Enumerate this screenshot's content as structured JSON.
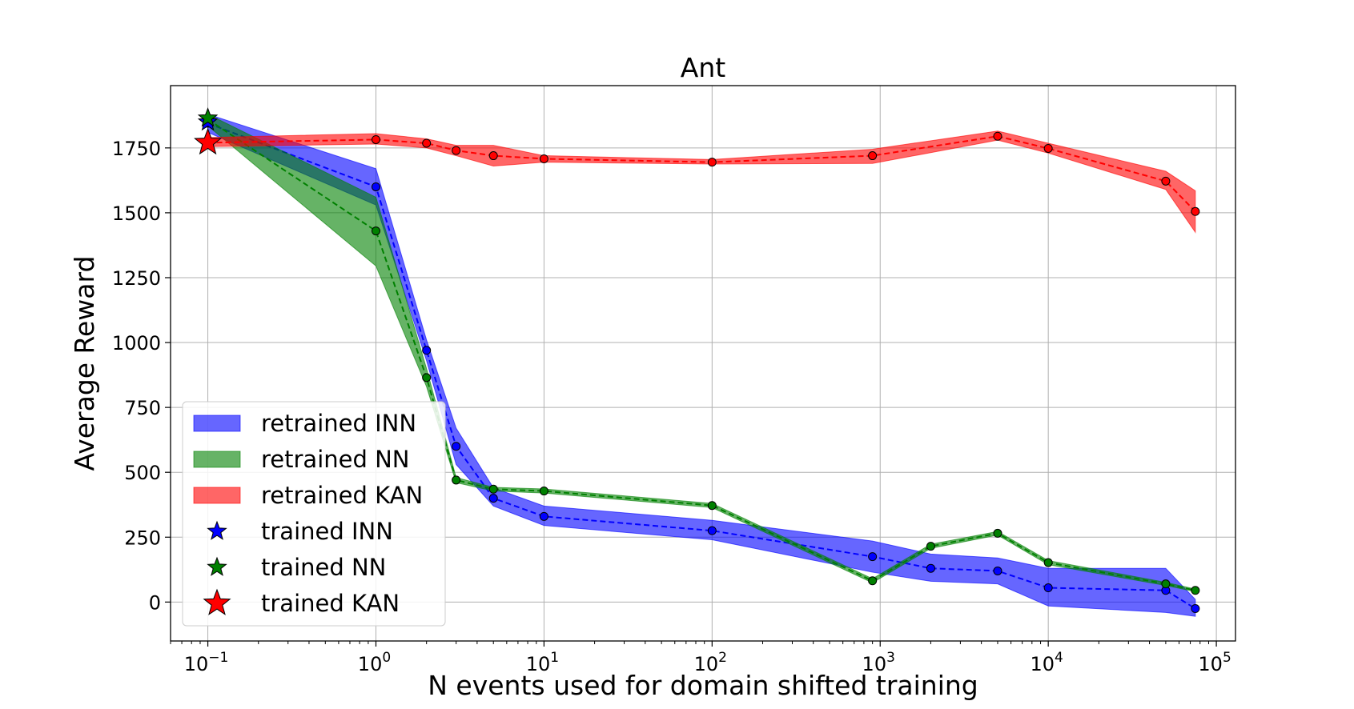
{
  "chart_data": {
    "type": "line",
    "title": "Ant",
    "xlabel": "N events used for domain shifted training",
    "ylabel": "Average Reward",
    "xscale": "log",
    "xlim": [
      0.06,
      130000
    ],
    "ylim": [
      -150,
      1990
    ],
    "x_ticks": [
      {
        "value": 0.1,
        "base": "10",
        "exp": "−1"
      },
      {
        "value": 1,
        "base": "10",
        "exp": "0"
      },
      {
        "value": 10,
        "base": "10",
        "exp": "1"
      },
      {
        "value": 100,
        "base": "10",
        "exp": "2"
      },
      {
        "value": 1000,
        "base": "10",
        "exp": "3"
      },
      {
        "value": 10000,
        "base": "10",
        "exp": "4"
      },
      {
        "value": 100000,
        "base": "10",
        "exp": "5"
      }
    ],
    "y_ticks": [
      0,
      250,
      500,
      750,
      1000,
      1250,
      1500,
      1750
    ],
    "grid": true,
    "legend_position": "lower-left",
    "series": [
      {
        "name": "retrained INN",
        "color": "#0000ff",
        "x": [
          0.1,
          1,
          2,
          3,
          5,
          10,
          100,
          900,
          2000,
          5000,
          10000,
          50000,
          75000
        ],
        "y": [
          1845,
          1600,
          970,
          600,
          400,
          330,
          275,
          175,
          130,
          120,
          55,
          45,
          -25
        ],
        "upper": [
          1880,
          1670,
          1010,
          670,
          440,
          370,
          315,
          235,
          185,
          170,
          130,
          130,
          10
        ],
        "lower": [
          1810,
          1530,
          930,
          530,
          370,
          295,
          240,
          115,
          80,
          70,
          -15,
          -40,
          -55
        ]
      },
      {
        "name": "retrained NN",
        "color": "#008000",
        "x": [
          0.1,
          1,
          2,
          3,
          5,
          10,
          100,
          900,
          2000,
          5000,
          10000,
          50000,
          75000
        ],
        "y": [
          1860,
          1430,
          865,
          470,
          435,
          428,
          372,
          82,
          215,
          265,
          152,
          70,
          45
        ],
        "upper": [
          1880,
          1560,
          900,
          480,
          442,
          436,
          380,
          90,
          223,
          272,
          160,
          76,
          50
        ],
        "lower": [
          1835,
          1295,
          830,
          460,
          428,
          420,
          364,
          74,
          207,
          258,
          144,
          64,
          40
        ]
      },
      {
        "name": "retrained KAN",
        "color": "#ff0000",
        "x": [
          0.1,
          1,
          2,
          3,
          5,
          10,
          100,
          900,
          5000,
          10000,
          50000,
          75000
        ],
        "y": [
          1770,
          1782,
          1768,
          1740,
          1720,
          1708,
          1695,
          1720,
          1795,
          1748,
          1622,
          1505
        ],
        "upper": [
          1790,
          1805,
          1785,
          1760,
          1760,
          1720,
          1705,
          1745,
          1815,
          1768,
          1660,
          1585
        ],
        "lower": [
          1755,
          1765,
          1750,
          1720,
          1680,
          1695,
          1688,
          1690,
          1780,
          1730,
          1590,
          1425
        ]
      }
    ],
    "trained_points": [
      {
        "name": "trained INN",
        "x": 0.1,
        "y": 1850,
        "color": "#0000ff"
      },
      {
        "name": "trained NN",
        "x": 0.1,
        "y": 1865,
        "color": "#008000"
      },
      {
        "name": "trained KAN",
        "x": 0.1,
        "y": 1770,
        "color": "#ff0000"
      }
    ],
    "legend": [
      "retrained INN",
      "retrained NN",
      "retrained KAN",
      "trained INN",
      "trained NN",
      "trained KAN"
    ]
  }
}
